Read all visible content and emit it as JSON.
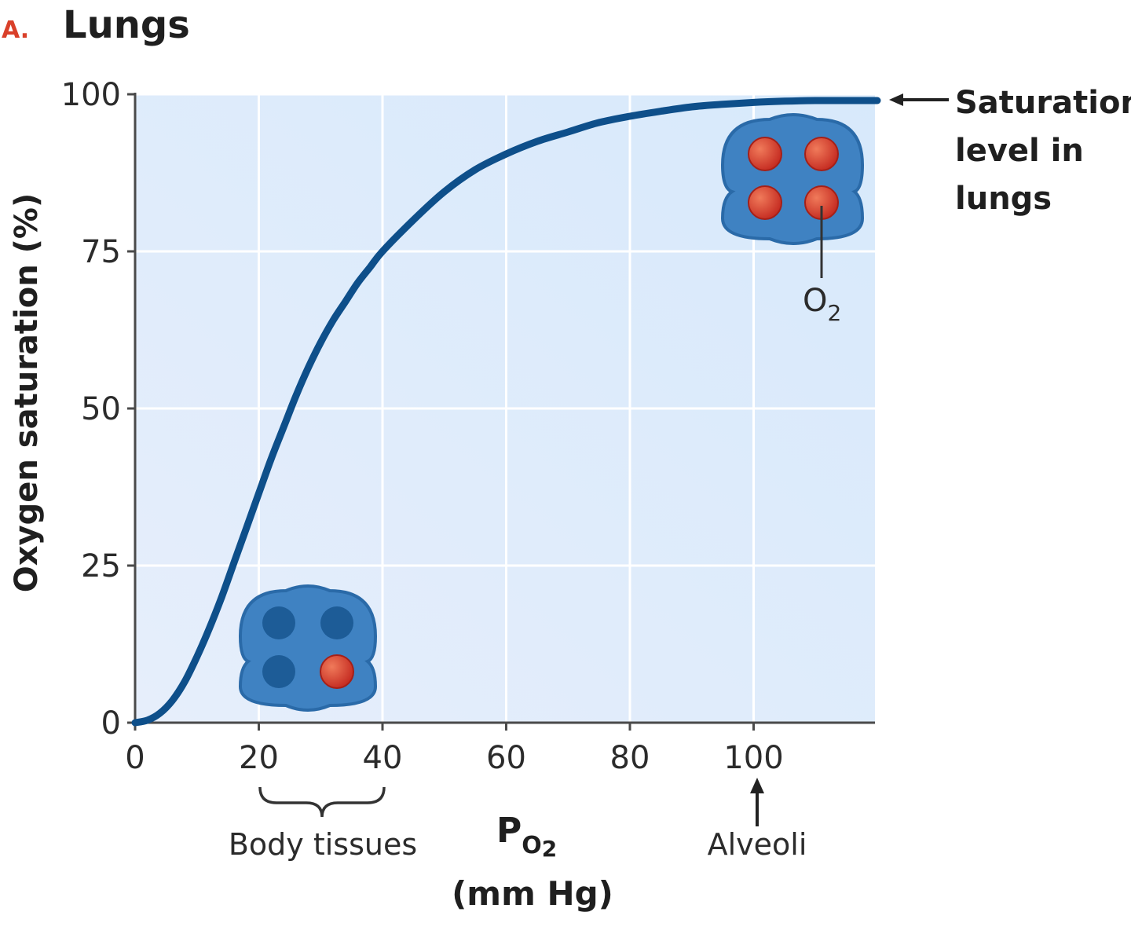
{
  "panel_letter": "A.",
  "chart_data": {
    "type": "line",
    "title": "Lungs",
    "xlabel": "P",
    "xlabel_sub": "O",
    "xlabel_subsub": "2",
    "xlabel_units": "(mm Hg)",
    "ylabel": "Oxygen saturation (%)",
    "xlim": [
      0,
      120
    ],
    "ylim": [
      0,
      100
    ],
    "x_ticks": [
      0,
      20,
      40,
      60,
      80,
      100
    ],
    "y_ticks": [
      0,
      25,
      50,
      75,
      100
    ],
    "grid": true,
    "series": [
      {
        "x": [
          0,
          2,
          4,
          6,
          8,
          10,
          12,
          14,
          16,
          18,
          20,
          22,
          24,
          26,
          28,
          30,
          32,
          34,
          36,
          38,
          40,
          45,
          50,
          55,
          60,
          65,
          70,
          75,
          80,
          85,
          90,
          95,
          100,
          105,
          110,
          115,
          120
        ],
        "y": [
          0,
          0.4,
          1.5,
          3.5,
          6.5,
          10.5,
          15,
          20,
          25.5,
          31,
          36.5,
          42,
          47,
          52,
          56.5,
          60.5,
          64,
          67,
          70,
          72.5,
          75,
          80,
          84.5,
          88,
          90.5,
          92.5,
          94,
          95.5,
          96.5,
          97.3,
          98,
          98.4,
          98.7,
          98.9,
          99,
          99,
          99
        ]
      }
    ],
    "annotations": {
      "saturation_lines": [
        "Saturation",
        "level in",
        "lungs"
      ],
      "body_tissues": "Body tissues",
      "alveoli": "Alveoli",
      "o2_main": "O",
      "o2_sub": "2"
    }
  },
  "colors": {
    "curve": "#0e4f8a",
    "plot_bg": "#dcebfa",
    "grid": "#ffffff",
    "panel_letter": "#d9402a",
    "hemoglobin": "#3f82c2",
    "hemoglobin_dark": "#2a6aa8",
    "oxygen": "#d9352b"
  }
}
